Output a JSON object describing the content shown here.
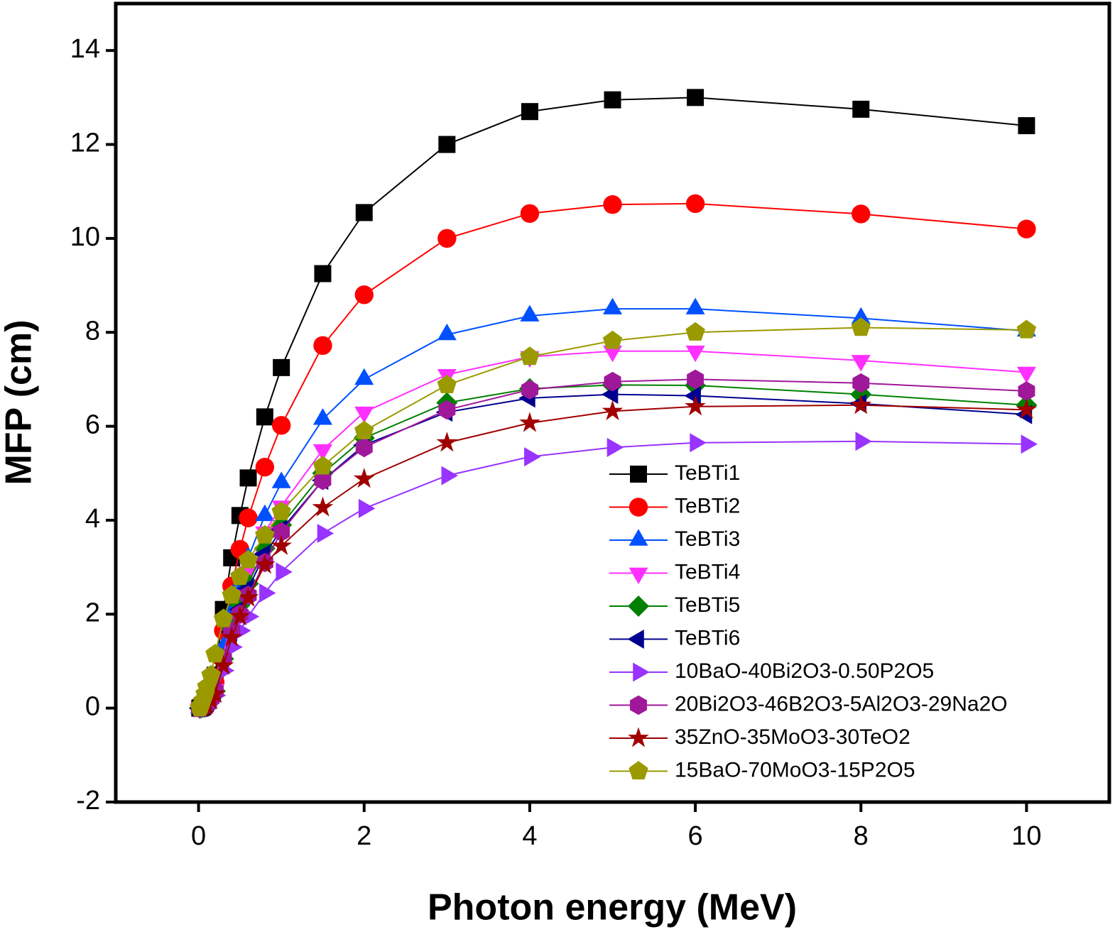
{
  "chart_data": {
    "type": "line",
    "xlabel": "Photon energy (MeV)",
    "ylabel": "MFP (cm)",
    "x": [
      0.015,
      0.03,
      0.05,
      0.08,
      0.1,
      0.15,
      0.2,
      0.3,
      0.4,
      0.5,
      0.6,
      0.8,
      1,
      1.5,
      2,
      3,
      4,
      5,
      6,
      8,
      10
    ],
    "xlim": [
      -1,
      11
    ],
    "xticks": [
      0,
      2,
      4,
      6,
      8,
      10
    ],
    "ylim": [
      -2,
      15
    ],
    "yticks": [
      -2,
      0,
      2,
      4,
      6,
      8,
      10,
      12,
      14
    ],
    "legend": "lower-right",
    "series": [
      {
        "name": "TeBTi1",
        "color": "#000000",
        "marker": "square",
        "values": [
          0,
          0.01,
          0.03,
          0.1,
          0.15,
          0.4,
          0.7,
          2.1,
          3.2,
          4.1,
          4.9,
          6.2,
          7.25,
          9.25,
          10.55,
          12.0,
          12.7,
          12.95,
          13.0,
          12.75,
          12.4
        ]
      },
      {
        "name": "TeBTi2",
        "color": "#ff0000",
        "marker": "circle",
        "values": [
          0,
          0.01,
          0.02,
          0.08,
          0.12,
          0.3,
          0.55,
          1.65,
          2.6,
          3.38,
          4.05,
          5.13,
          6.02,
          7.72,
          8.8,
          10.0,
          10.53,
          10.72,
          10.74,
          10.52,
          10.2
        ]
      },
      {
        "name": "TeBTi3",
        "color": "#0050ff",
        "marker": "triangle-up",
        "values": [
          0,
          0.01,
          0.02,
          0.06,
          0.1,
          0.25,
          0.45,
          1.3,
          2.05,
          2.65,
          3.2,
          4.1,
          4.8,
          6.15,
          7.0,
          7.95,
          8.35,
          8.5,
          8.5,
          8.3,
          8.03
        ]
      },
      {
        "name": "TeBTi4",
        "color": "#ff30ff",
        "marker": "triangle-down",
        "values": [
          0,
          0.01,
          0.02,
          0.05,
          0.09,
          0.22,
          0.4,
          1.15,
          1.85,
          2.4,
          2.9,
          3.75,
          4.3,
          5.5,
          6.3,
          7.1,
          7.48,
          7.6,
          7.6,
          7.4,
          7.15
        ]
      },
      {
        "name": "TeBTi5",
        "color": "#008000",
        "marker": "diamond",
        "values": [
          0,
          0.01,
          0.02,
          0.05,
          0.08,
          0.2,
          0.36,
          1.05,
          1.7,
          2.2,
          2.65,
          3.4,
          3.9,
          5.0,
          5.75,
          6.5,
          6.8,
          6.88,
          6.87,
          6.68,
          6.45
        ]
      },
      {
        "name": "TeBTi6",
        "color": "#000090",
        "marker": "triangle-left",
        "values": [
          0,
          0.01,
          0.02,
          0.05,
          0.08,
          0.19,
          0.35,
          1.0,
          1.62,
          2.1,
          2.55,
          3.28,
          3.8,
          4.85,
          5.6,
          6.3,
          6.6,
          6.68,
          6.65,
          6.48,
          6.25
        ]
      },
      {
        "name": "10BaO-40Bi2O3-0.50P2O5",
        "color": "#9933ff",
        "marker": "triangle-right",
        "values": [
          0,
          0.01,
          0.01,
          0.03,
          0.06,
          0.15,
          0.27,
          0.8,
          1.3,
          1.65,
          1.95,
          2.45,
          2.9,
          3.72,
          4.25,
          4.95,
          5.35,
          5.55,
          5.65,
          5.68,
          5.62
        ]
      },
      {
        "name": "20Bi2O3-46B2O3-5Al2O3-29Na2O",
        "color": "#a0189a",
        "marker": "hexagon",
        "values": [
          0,
          0.01,
          0.02,
          0.05,
          0.08,
          0.2,
          0.37,
          1.05,
          1.65,
          2.0,
          2.4,
          3.1,
          3.75,
          4.85,
          5.55,
          6.35,
          6.78,
          6.95,
          7.0,
          6.92,
          6.75
        ]
      },
      {
        "name": "35ZnO-35MoO3-30TeO2",
        "color": "#a00000",
        "marker": "star",
        "values": [
          0,
          0.01,
          0.02,
          0.04,
          0.07,
          0.17,
          0.3,
          0.9,
          1.5,
          1.95,
          2.35,
          3.05,
          3.45,
          4.27,
          4.88,
          5.65,
          6.07,
          6.32,
          6.42,
          6.45,
          6.35
        ]
      },
      {
        "name": "15BaO-70MoO3-15P2O5",
        "color": "#9a9a00",
        "marker": "pentagon",
        "values": [
          0,
          0.05,
          0.15,
          0.3,
          0.45,
          0.7,
          1.15,
          1.9,
          2.4,
          2.8,
          3.15,
          3.68,
          4.18,
          5.15,
          5.9,
          6.88,
          7.48,
          7.82,
          8.0,
          8.1,
          8.05
        ]
      }
    ]
  }
}
